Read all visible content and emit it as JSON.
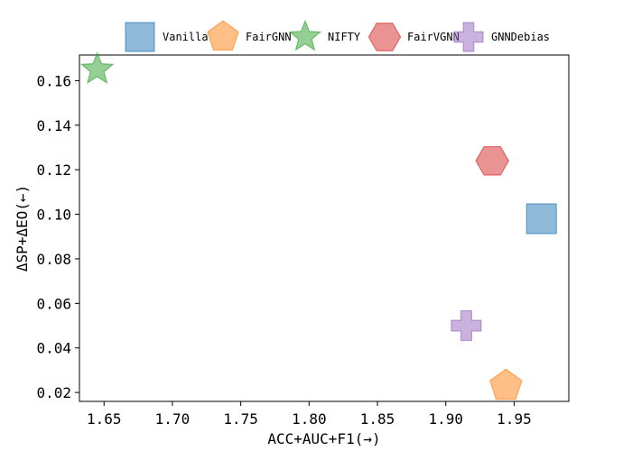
{
  "chart_data": {
    "type": "scatter",
    "title": "",
    "xlabel": "ACC+AUC+F1(→)",
    "ylabel": "ΔSP+ΔEO(←)",
    "xlim": [
      1.632,
      1.99
    ],
    "ylim": [
      0.016,
      0.1715
    ],
    "xticks": [
      1.65,
      1.7,
      1.75,
      1.8,
      1.85,
      1.9,
      1.95
    ],
    "xtick_labels": [
      "1.65",
      "1.70",
      "1.75",
      "1.80",
      "1.85",
      "1.90",
      "1.95"
    ],
    "yticks": [
      0.02,
      0.04,
      0.06,
      0.08,
      0.1,
      0.12,
      0.14,
      0.16
    ],
    "ytick_labels": [
      "0.02",
      "0.04",
      "0.06",
      "0.08",
      "0.10",
      "0.12",
      "0.14",
      "0.16"
    ],
    "grid": false,
    "legend_position": "top-center",
    "series": [
      {
        "name": "Vanilla",
        "marker": "square",
        "color": "#1f77b4",
        "points": [
          {
            "x": 1.97,
            "y": 0.098
          }
        ]
      },
      {
        "name": "FairGNN",
        "marker": "pentagon",
        "color": "#ff7f0e",
        "points": [
          {
            "x": 1.944,
            "y": 0.023
          }
        ]
      },
      {
        "name": "NIFTY",
        "marker": "star",
        "color": "#2ca02c",
        "points": [
          {
            "x": 1.645,
            "y": 0.165
          }
        ]
      },
      {
        "name": "FairVGNN",
        "marker": "hexagon",
        "color": "#d62728",
        "points": [
          {
            "x": 1.934,
            "y": 0.124
          }
        ]
      },
      {
        "name": "GNNDebias",
        "marker": "plus",
        "color": "#9467bd",
        "points": [
          {
            "x": 1.915,
            "y": 0.05
          }
        ]
      }
    ]
  }
}
